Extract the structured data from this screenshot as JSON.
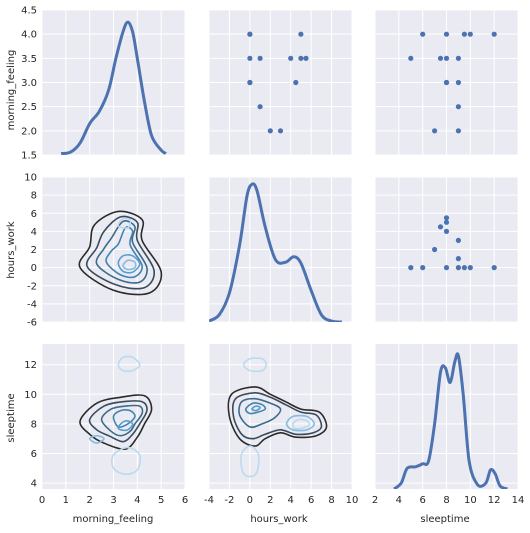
{
  "chart_data": {
    "type": "pairgrid",
    "variables": [
      "morning_feeling",
      "hours_work",
      "sleeptime"
    ],
    "axis_ranges": {
      "morning_feeling": [
        0,
        6
      ],
      "hours_work": [
        -4,
        10
      ],
      "sleeptime": [
        2,
        14
      ]
    },
    "row_ranges": {
      "morning_feeling": [
        1.5,
        4.5
      ],
      "hours_work": [
        -6,
        10
      ],
      "sleeptime": [
        3.6,
        13.4
      ]
    },
    "ticks": {
      "morning_feeling_x": [
        0,
        1,
        2,
        3,
        4,
        5,
        6
      ],
      "hours_work_x": [
        -4,
        -2,
        0,
        2,
        4,
        6,
        8,
        10
      ],
      "sleeptime_x": [
        2,
        4,
        6,
        8,
        10,
        12,
        14
      ],
      "morning_feeling_y": [
        1.5,
        2.0,
        2.5,
        3.0,
        3.5,
        4.0,
        4.5
      ],
      "hours_work_y": [
        -6,
        -4,
        -2,
        0,
        2,
        4,
        6,
        8,
        10
      ],
      "sleeptime_y": [
        4,
        6,
        8,
        10,
        12
      ]
    },
    "ytick_labels": {
      "morning_feeling": [
        "1.5",
        "2.0",
        "2.5",
        "3.0",
        "3.5",
        "4.0",
        "4.5"
      ]
    },
    "scatter_hw_vs_mf": [
      [
        0,
        4
      ],
      [
        0,
        4
      ],
      [
        0,
        3.5
      ],
      [
        0,
        3
      ],
      [
        0,
        3
      ],
      [
        1,
        3.5
      ],
      [
        1,
        2.5
      ],
      [
        2,
        2
      ],
      [
        3,
        2
      ],
      [
        4,
        3.5
      ],
      [
        4.5,
        3
      ],
      [
        5,
        4
      ],
      [
        5,
        3.5
      ],
      [
        5.5,
        3.5
      ]
    ],
    "scatter_st_vs_mf": [
      [
        5,
        3.5
      ],
      [
        6,
        4
      ],
      [
        7,
        2
      ],
      [
        7.5,
        3.5
      ],
      [
        8,
        4
      ],
      [
        8,
        3.5
      ],
      [
        8,
        3
      ],
      [
        8,
        3
      ],
      [
        9,
        3.5
      ],
      [
        9,
        3
      ],
      [
        9,
        2.5
      ],
      [
        9,
        2
      ],
      [
        9.5,
        4
      ],
      [
        10,
        4
      ],
      [
        12,
        4
      ]
    ],
    "scatter_st_vs_hw": [
      [
        5,
        0
      ],
      [
        6,
        0
      ],
      [
        7,
        2
      ],
      [
        7.5,
        4.5
      ],
      [
        8,
        5.5
      ],
      [
        8,
        5
      ],
      [
        8,
        4
      ],
      [
        8,
        0
      ],
      [
        9,
        3
      ],
      [
        9,
        1
      ],
      [
        9,
        0
      ],
      [
        9.5,
        0
      ],
      [
        10,
        0
      ],
      [
        12,
        0
      ]
    ],
    "kde_morning_feeling": [
      [
        0.8,
        1.53
      ],
      [
        1.2,
        1.56
      ],
      [
        1.6,
        1.75
      ],
      [
        2.0,
        2.15
      ],
      [
        2.4,
        2.4
      ],
      [
        2.8,
        2.85
      ],
      [
        3.1,
        3.5
      ],
      [
        3.4,
        4.05
      ],
      [
        3.6,
        4.25
      ],
      [
        3.8,
        4.05
      ],
      [
        4.0,
        3.5
      ],
      [
        4.3,
        2.6
      ],
      [
        4.6,
        1.9
      ],
      [
        5.0,
        1.6
      ],
      [
        5.2,
        1.53
      ]
    ],
    "kde_hours_work": [
      [
        -4,
        -5.9
      ],
      [
        -3,
        -5.2
      ],
      [
        -2,
        -2.8
      ],
      [
        -1,
        2.5
      ],
      [
        -0.3,
        7.8
      ],
      [
        0.2,
        9.2
      ],
      [
        0.7,
        8.5
      ],
      [
        1.5,
        4.5
      ],
      [
        2.5,
        0.9
      ],
      [
        3.5,
        0.6
      ],
      [
        4.3,
        1.2
      ],
      [
        5.0,
        0.5
      ],
      [
        6.0,
        -2.5
      ],
      [
        7.0,
        -5.2
      ],
      [
        8.0,
        -5.9
      ],
      [
        9.0,
        -6.0
      ]
    ],
    "kde_sleeptime": [
      [
        3.6,
        3.6
      ],
      [
        4.2,
        4.0
      ],
      [
        4.7,
        5.0
      ],
      [
        5.4,
        5.1
      ],
      [
        6.0,
        5.3
      ],
      [
        6.5,
        5.5
      ],
      [
        7.0,
        8.0
      ],
      [
        7.5,
        11.5
      ],
      [
        7.9,
        11.8
      ],
      [
        8.3,
        10.8
      ],
      [
        8.7,
        12.2
      ],
      [
        9.0,
        12.6
      ],
      [
        9.4,
        10.0
      ],
      [
        9.9,
        5.5
      ],
      [
        10.6,
        3.9
      ],
      [
        11.3,
        4.0
      ],
      [
        11.7,
        4.9
      ],
      [
        12.1,
        4.6
      ],
      [
        12.5,
        3.8
      ],
      [
        13.1,
        3.6
      ]
    ],
    "contours_mf_hw": [
      [
        [
          2.0,
          2.3
        ],
        [
          2.2,
          4.7
        ],
        [
          3.2,
          6.2
        ],
        [
          4.2,
          5.3
        ],
        [
          4.2,
          3.0
        ],
        [
          5.0,
          -0.5
        ],
        [
          4.5,
          -2.8
        ],
        [
          3.0,
          -2.5
        ],
        [
          1.6,
          0.0
        ]
      ],
      [
        [
          2.3,
          2.2
        ],
        [
          2.6,
          4.0
        ],
        [
          3.3,
          5.6
        ],
        [
          4.0,
          5.0
        ],
        [
          4.0,
          3.0
        ],
        [
          4.7,
          -0.3
        ],
        [
          4.3,
          -2.2
        ],
        [
          3.1,
          -1.9
        ],
        [
          1.9,
          0.1
        ]
      ],
      [
        [
          2.6,
          2.1
        ],
        [
          2.9,
          3.2
        ],
        [
          3.4,
          5.1
        ],
        [
          3.9,
          4.5
        ],
        [
          3.8,
          2.8
        ],
        [
          4.4,
          0.0
        ],
        [
          4.1,
          -1.6
        ],
        [
          3.2,
          -1.3
        ],
        [
          2.3,
          0.4
        ]
      ],
      [
        [
          2.9,
          1.8
        ],
        [
          3.2,
          2.6
        ],
        [
          3.5,
          4.4
        ],
        [
          3.8,
          4.0
        ],
        [
          3.7,
          2.5
        ],
        [
          4.2,
          0.2
        ],
        [
          3.9,
          -1.0
        ],
        [
          3.3,
          -0.8
        ],
        [
          2.7,
          0.6
        ]
      ],
      [
        [
          3.2,
          0.5
        ],
        [
          3.4,
          1.3
        ],
        [
          3.8,
          1.3
        ],
        [
          4.1,
          0.4
        ],
        [
          3.8,
          -0.5
        ],
        [
          3.4,
          -0.4
        ]
      ],
      [
        [
          3.4,
          0.2
        ],
        [
          3.6,
          0.8
        ],
        [
          3.9,
          0.6
        ],
        [
          3.9,
          0.0
        ],
        [
          3.6,
          -0.2
        ]
      ],
      [
        [
          3.2,
          4.6
        ],
        [
          3.4,
          5.4
        ],
        [
          3.7,
          5.2
        ],
        [
          3.6,
          4.4
        ]
      ]
    ],
    "contours_mf_st": [
      [
        [
          1.6,
          8.2
        ],
        [
          2.3,
          9.4
        ],
        [
          3.3,
          9.8
        ],
        [
          4.3,
          9.9
        ],
        [
          4.6,
          9.0
        ],
        [
          4.3,
          8.0
        ],
        [
          4.0,
          7.1
        ],
        [
          3.5,
          6.3
        ],
        [
          2.6,
          6.7
        ],
        [
          2.0,
          7.3
        ]
      ],
      [
        [
          2.0,
          8.3
        ],
        [
          2.6,
          9.2
        ],
        [
          3.4,
          9.5
        ],
        [
          4.2,
          9.5
        ],
        [
          4.4,
          8.9
        ],
        [
          4.1,
          8.0
        ],
        [
          3.8,
          7.3
        ],
        [
          3.4,
          6.8
        ],
        [
          2.8,
          7.2
        ],
        [
          2.3,
          7.6
        ]
      ],
      [
        [
          2.5,
          8.3
        ],
        [
          2.9,
          9.0
        ],
        [
          3.5,
          9.2
        ],
        [
          4.1,
          9.2
        ],
        [
          4.2,
          8.7
        ],
        [
          3.9,
          8.0
        ],
        [
          3.7,
          7.5
        ],
        [
          3.3,
          7.2
        ],
        [
          2.9,
          7.5
        ]
      ],
      [
        [
          3.0,
          8.5
        ],
        [
          3.3,
          8.9
        ],
        [
          3.7,
          8.9
        ],
        [
          3.9,
          8.5
        ],
        [
          3.6,
          8.0
        ],
        [
          3.2,
          7.8
        ]
      ],
      [
        [
          3.2,
          7.8
        ],
        [
          3.5,
          8.2
        ],
        [
          3.8,
          8.0
        ],
        [
          3.6,
          7.6
        ],
        [
          3.3,
          7.6
        ]
      ],
      [
        [
          2.0,
          7.0
        ],
        [
          2.3,
          7.2
        ],
        [
          2.6,
          7.0
        ],
        [
          2.3,
          6.7
        ]
      ],
      [
        [
          3.0,
          5.0
        ],
        [
          3.0,
          5.9
        ],
        [
          3.6,
          6.4
        ],
        [
          4.1,
          5.9
        ],
        [
          4.0,
          4.9
        ],
        [
          3.5,
          4.6
        ]
      ],
      [
        [
          3.2,
          12.0
        ],
        [
          3.4,
          12.5
        ],
        [
          3.8,
          12.5
        ],
        [
          4.1,
          12.0
        ],
        [
          3.8,
          11.6
        ],
        [
          3.4,
          11.6
        ]
      ]
    ],
    "contours_hw_st": [
      [
        [
          -2.0,
          8.5
        ],
        [
          -1.8,
          10.0
        ],
        [
          0.5,
          10.5
        ],
        [
          2.0,
          10.0
        ],
        [
          3.5,
          9.5
        ],
        [
          5.0,
          9.0
        ],
        [
          6.8,
          8.8
        ],
        [
          7.5,
          7.8
        ],
        [
          6.5,
          7.2
        ],
        [
          4.5,
          7.1
        ],
        [
          3.0,
          7.4
        ],
        [
          1.5,
          7.0
        ],
        [
          0.5,
          6.5
        ],
        [
          -1.0,
          7.0
        ]
      ],
      [
        [
          -1.6,
          8.5
        ],
        [
          -1.4,
          9.7
        ],
        [
          0.5,
          10.1
        ],
        [
          2.0,
          9.8
        ],
        [
          3.5,
          9.3
        ],
        [
          5.0,
          8.8
        ],
        [
          6.5,
          8.6
        ],
        [
          7.0,
          7.8
        ],
        [
          6.2,
          7.4
        ],
        [
          4.5,
          7.3
        ],
        [
          3.0,
          7.6
        ],
        [
          1.5,
          7.3
        ],
        [
          0.3,
          7.0
        ],
        [
          -0.8,
          7.3
        ]
      ],
      [
        [
          -1.0,
          8.6
        ],
        [
          -0.8,
          9.5
        ],
        [
          0.5,
          9.7
        ],
        [
          2.0,
          9.4
        ],
        [
          3.0,
          9.0
        ],
        [
          2.4,
          8.4
        ],
        [
          1.2,
          8.0
        ],
        [
          0.0,
          7.8
        ]
      ],
      [
        [
          -0.4,
          9.0
        ],
        [
          0.3,
          9.4
        ],
        [
          1.2,
          9.3
        ],
        [
          1.5,
          9.0
        ],
        [
          0.8,
          8.8
        ],
        [
          0.0,
          8.7
        ]
      ],
      [
        [
          0.2,
          9.0
        ],
        [
          0.6,
          9.2
        ],
        [
          1.0,
          9.1
        ],
        [
          0.6,
          8.9
        ]
      ],
      [
        [
          3.6,
          8.0
        ],
        [
          4.2,
          8.5
        ],
        [
          5.6,
          8.5
        ],
        [
          6.3,
          8.0
        ],
        [
          5.6,
          7.6
        ],
        [
          4.2,
          7.6
        ]
      ],
      [
        [
          4.2,
          8.0
        ],
        [
          4.8,
          8.3
        ],
        [
          5.6,
          8.2
        ],
        [
          5.8,
          7.9
        ],
        [
          5.0,
          7.7
        ],
        [
          4.4,
          7.7
        ]
      ],
      [
        [
          -0.8,
          5.0
        ],
        [
          -0.8,
          6.0
        ],
        [
          0.0,
          6.5
        ],
        [
          0.8,
          6.0
        ],
        [
          0.8,
          5.0
        ],
        [
          0.4,
          4.5
        ],
        [
          -0.4,
          4.5
        ]
      ],
      [
        [
          -0.6,
          12.0
        ],
        [
          0.0,
          12.4
        ],
        [
          1.2,
          12.4
        ],
        [
          1.6,
          12.0
        ],
        [
          1.2,
          11.6
        ],
        [
          0.0,
          11.6
        ]
      ]
    ]
  }
}
